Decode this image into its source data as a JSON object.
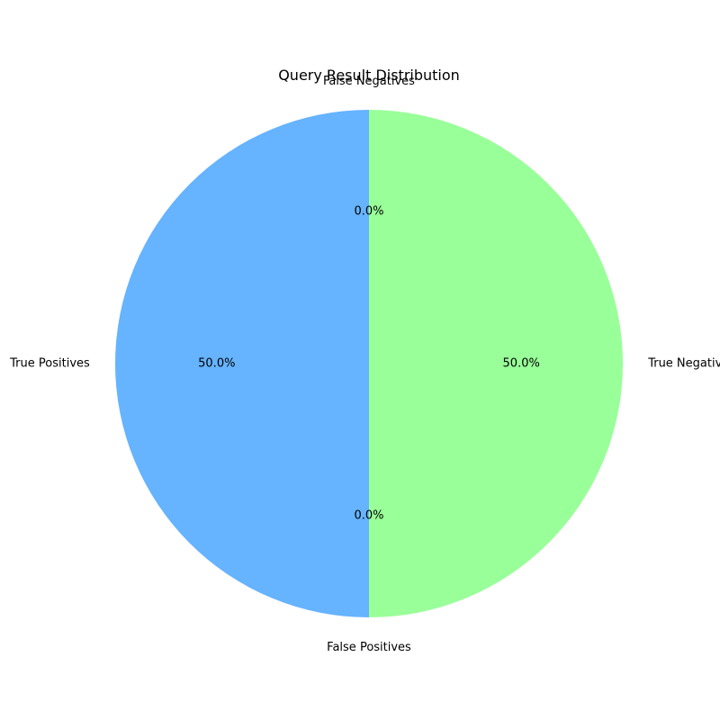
{
  "chart_data": {
    "type": "pie",
    "title": "Query Result Distribution",
    "start_angle_deg": 90,
    "direction": "counterclockwise",
    "slices": [
      {
        "label": "True Positives",
        "value": 50,
        "percent_label": "50.0%",
        "color": "#66b3ff"
      },
      {
        "label": "False Positives",
        "value": 0,
        "percent_label": "0.0%",
        "color": "#ff9999"
      },
      {
        "label": "True Negatives",
        "value": 50,
        "percent_label": "50.0%",
        "color": "#99ff99"
      },
      {
        "label": "False Negatives",
        "value": 0,
        "percent_label": "0.0%",
        "color": "#ffcc99"
      }
    ]
  }
}
